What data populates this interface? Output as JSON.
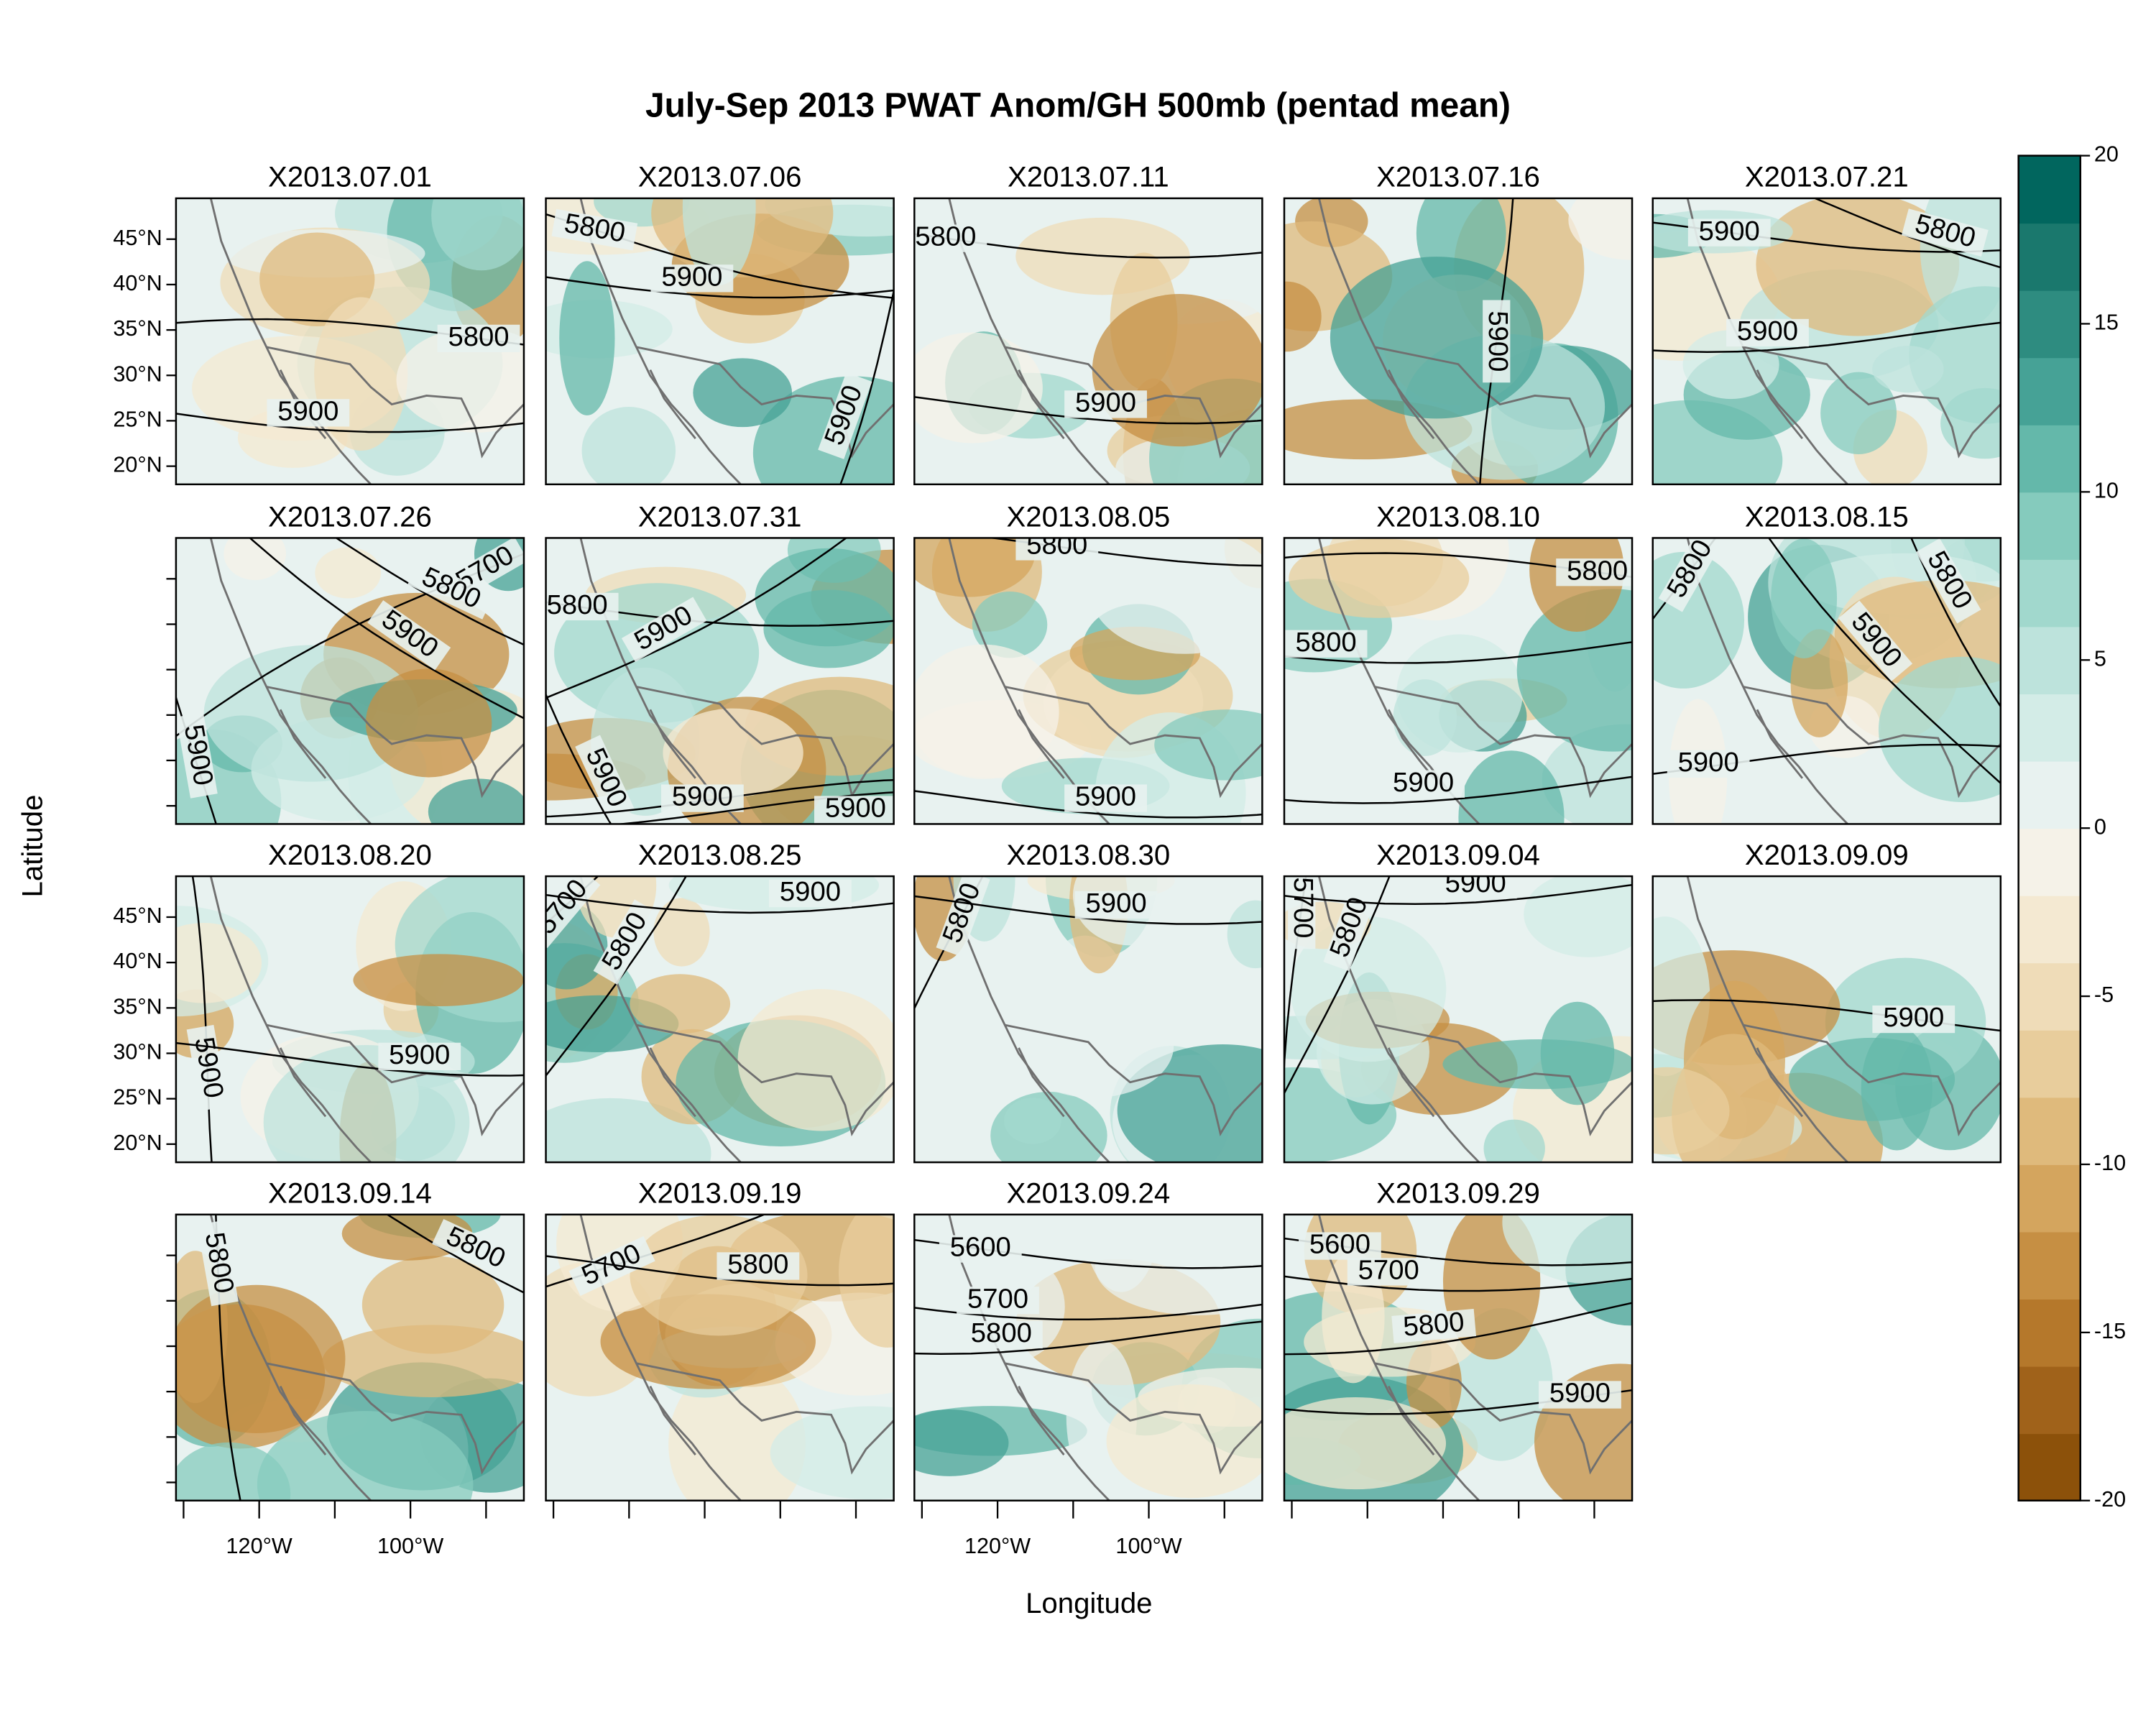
{
  "chart_data": {
    "type": "map",
    "title": "July-Sep 2013 PWAT Anom/GH 500mb (pentad mean)",
    "xlabel": "Longitude",
    "ylabel": "Latitude",
    "xlim": [
      -131,
      -85
    ],
    "ylim": [
      18,
      49.5
    ],
    "xticks": [
      -130,
      -120,
      -110,
      -100,
      -90
    ],
    "xtick_labels": [
      {
        "value": -120,
        "label": "120°W"
      },
      {
        "value": -100,
        "label": "100°W"
      }
    ],
    "yticks": [
      {
        "value": 20,
        "label": "20°N"
      },
      {
        "value": 25,
        "label": "25°N"
      },
      {
        "value": 30,
        "label": "30°N"
      },
      {
        "value": 35,
        "label": "35°N"
      },
      {
        "value": 40,
        "label": "40°N"
      },
      {
        "value": 45,
        "label": "45°N"
      }
    ],
    "colorbar": {
      "lim": [
        -20,
        20
      ],
      "ticks": [
        -20,
        -15,
        -10,
        -5,
        0,
        5,
        10,
        15,
        20
      ],
      "colors": [
        "#8c510a",
        "#a0621a",
        "#b5782b",
        "#c68f43",
        "#d4a55e",
        "#dfba7c",
        "#e8cd9c",
        "#efdcb8",
        "#f4e9d2",
        "#f5f2e8",
        "#e8f2f0",
        "#d3ece7",
        "#bde3dc",
        "#a1d8cd",
        "#85cbbd",
        "#64b8aa",
        "#46a296",
        "#2e8c80",
        "#1a786d",
        "#01665e"
      ]
    },
    "panels": [
      {
        "title": "X2013.07.01",
        "contour_labels": [
          5800,
          5900
        ]
      },
      {
        "title": "X2013.07.06",
        "contour_labels": [
          5800,
          5900,
          5900
        ]
      },
      {
        "title": "X2013.07.11",
        "contour_labels": [
          5800,
          5900
        ]
      },
      {
        "title": "X2013.07.16",
        "contour_labels": [
          5900
        ]
      },
      {
        "title": "X2013.07.21",
        "contour_labels": [
          5900,
          5800,
          5900
        ]
      },
      {
        "title": "X2013.07.26",
        "contour_labels": [
          5700,
          5800,
          5900,
          5900
        ]
      },
      {
        "title": "X2013.07.31",
        "contour_labels": [
          5800,
          5900,
          5900,
          5900,
          5900
        ]
      },
      {
        "title": "X2013.08.05",
        "contour_labels": [
          5800,
          5900
        ]
      },
      {
        "title": "X2013.08.10",
        "contour_labels": [
          5800,
          5800,
          5900
        ]
      },
      {
        "title": "X2013.08.15",
        "contour_labels": [
          5800,
          5800,
          5900,
          5900
        ]
      },
      {
        "title": "X2013.08.20",
        "contour_labels": [
          5900,
          5900
        ]
      },
      {
        "title": "X2013.08.25",
        "contour_labels": [
          5700,
          5800,
          5900
        ]
      },
      {
        "title": "X2013.08.30",
        "contour_labels": [
          5800,
          5900
        ]
      },
      {
        "title": "X2013.09.04",
        "contour_labels": [
          5700,
          5800,
          5900
        ]
      },
      {
        "title": "X2013.09.09",
        "contour_labels": [
          5900
        ]
      },
      {
        "title": "X2013.09.14",
        "contour_labels": [
          5800,
          5800
        ]
      },
      {
        "title": "X2013.09.19",
        "contour_labels": [
          5700,
          5800
        ]
      },
      {
        "title": "X2013.09.24",
        "contour_labels": [
          5600,
          5700,
          5800
        ]
      },
      {
        "title": "X2013.09.29",
        "contour_labels": [
          5600,
          5700,
          5800,
          5900
        ]
      }
    ]
  }
}
